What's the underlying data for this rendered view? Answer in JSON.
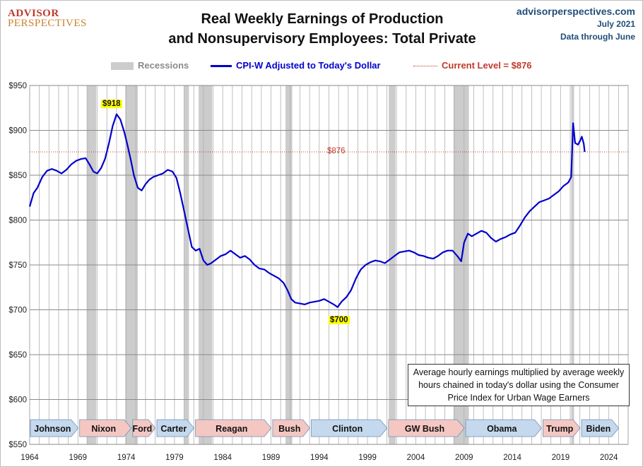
{
  "header": {
    "logo_line1": "ADVISOR",
    "logo_line2": "PERSPECTIVES",
    "title_line1": "Real Weekly Earnings of Production",
    "title_line2": "and Nonsupervisory Employees: Total Private",
    "source_site": "advisorperspectives.com",
    "source_date": "July 2021",
    "source_note": "Data through June"
  },
  "legend": {
    "recessions": "Recessions",
    "series": "CPI-W Adjusted to Today's Dollar",
    "current": "Current Level = $876"
  },
  "note": "Average hourly earnings multiplied by average weekly hours chained in today's dollar using the Consumer Price Index for Urban Wage Earners",
  "callouts": {
    "max": "$918",
    "min": "$700",
    "current": "$876"
  },
  "colors": {
    "line": "#0000cc",
    "recession": "#cccccc",
    "current": "#c0392b",
    "gop": "#f4c7c3",
    "dem": "#c5d9ee"
  },
  "chart_data": {
    "type": "line",
    "title": "Real Weekly Earnings of Production and Nonsupervisory Employees: Total Private",
    "ylim": [
      550,
      950
    ],
    "xlim": [
      1964,
      2026
    ],
    "y_ticks": [
      550,
      600,
      650,
      700,
      750,
      800,
      850,
      900,
      950
    ],
    "y_tick_labels": [
      "$550",
      "$600",
      "$650",
      "$700",
      "$750",
      "$800",
      "$850",
      "$900",
      "$950"
    ],
    "x_ticks": [
      1964,
      1969,
      1974,
      1979,
      1984,
      1989,
      1994,
      1999,
      2004,
      2009,
      2014,
      2019,
      2024
    ],
    "grid": true,
    "current_level": 876,
    "recessions": [
      [
        1969.9,
        1970.9
      ],
      [
        1973.9,
        1975.2
      ],
      [
        1980.0,
        1980.5
      ],
      [
        1981.5,
        1982.9
      ],
      [
        1990.5,
        1991.2
      ],
      [
        2001.2,
        2001.9
      ],
      [
        2007.9,
        2009.5
      ],
      [
        2020.1,
        2020.4
      ]
    ],
    "presidents": [
      {
        "name": "Johnson",
        "start": 1964.0,
        "end": 1969.1,
        "party": "D"
      },
      {
        "name": "Nixon",
        "start": 1969.1,
        "end": 1974.6,
        "party": "R"
      },
      {
        "name": "Ford",
        "start": 1974.6,
        "end": 1977.1,
        "party": "R"
      },
      {
        "name": "Carter",
        "start": 1977.1,
        "end": 1981.1,
        "party": "D"
      },
      {
        "name": "Reagan",
        "start": 1981.1,
        "end": 1989.1,
        "party": "R"
      },
      {
        "name": "Bush",
        "start": 1989.1,
        "end": 1993.1,
        "party": "R"
      },
      {
        "name": "Clinton",
        "start": 1993.1,
        "end": 2001.1,
        "party": "D"
      },
      {
        "name": "GW Bush",
        "start": 2001.1,
        "end": 2009.1,
        "party": "R"
      },
      {
        "name": "Obama",
        "start": 2009.1,
        "end": 2017.1,
        "party": "D"
      },
      {
        "name": "Trump",
        "start": 2017.1,
        "end": 2021.1,
        "party": "R"
      },
      {
        "name": "Biden",
        "start": 2021.1,
        "end": 2025.1,
        "party": "D"
      }
    ],
    "series": [
      {
        "name": "CPI-W Adjusted to Today's Dollar",
        "points": [
          [
            1964.0,
            815
          ],
          [
            1964.4,
            830
          ],
          [
            1964.8,
            836
          ],
          [
            1965.3,
            848
          ],
          [
            1965.8,
            855
          ],
          [
            1966.3,
            857
          ],
          [
            1966.8,
            855
          ],
          [
            1967.3,
            852
          ],
          [
            1967.8,
            856
          ],
          [
            1968.3,
            862
          ],
          [
            1968.8,
            866
          ],
          [
            1969.3,
            868
          ],
          [
            1969.8,
            869
          ],
          [
            1970.2,
            862
          ],
          [
            1970.6,
            854
          ],
          [
            1971.0,
            852
          ],
          [
            1971.4,
            858
          ],
          [
            1971.8,
            868
          ],
          [
            1972.2,
            885
          ],
          [
            1972.6,
            905
          ],
          [
            1973.0,
            918
          ],
          [
            1973.4,
            912
          ],
          [
            1973.8,
            898
          ],
          [
            1974.1,
            885
          ],
          [
            1974.5,
            866
          ],
          [
            1974.8,
            850
          ],
          [
            1975.2,
            836
          ],
          [
            1975.6,
            833
          ],
          [
            1976.0,
            840
          ],
          [
            1976.4,
            845
          ],
          [
            1976.8,
            848
          ],
          [
            1977.3,
            850
          ],
          [
            1977.8,
            852
          ],
          [
            1978.3,
            856
          ],
          [
            1978.8,
            854
          ],
          [
            1979.2,
            847
          ],
          [
            1979.6,
            830
          ],
          [
            1980.0,
            810
          ],
          [
            1980.4,
            790
          ],
          [
            1980.8,
            770
          ],
          [
            1981.2,
            766
          ],
          [
            1981.6,
            768
          ],
          [
            1982.0,
            755
          ],
          [
            1982.4,
            750
          ],
          [
            1982.8,
            752
          ],
          [
            1983.3,
            756
          ],
          [
            1983.8,
            760
          ],
          [
            1984.3,
            762
          ],
          [
            1984.8,
            766
          ],
          [
            1985.3,
            762
          ],
          [
            1985.8,
            758
          ],
          [
            1986.3,
            760
          ],
          [
            1986.8,
            756
          ],
          [
            1987.3,
            750
          ],
          [
            1987.8,
            746
          ],
          [
            1988.3,
            745
          ],
          [
            1988.8,
            741
          ],
          [
            1989.3,
            738
          ],
          [
            1989.8,
            735
          ],
          [
            1990.3,
            730
          ],
          [
            1990.7,
            722
          ],
          [
            1991.1,
            712
          ],
          [
            1991.5,
            708
          ],
          [
            1992.0,
            707
          ],
          [
            1992.5,
            706
          ],
          [
            1993.0,
            708
          ],
          [
            1993.5,
            709
          ],
          [
            1994.0,
            710
          ],
          [
            1994.5,
            712
          ],
          [
            1995.0,
            709
          ],
          [
            1995.5,
            706
          ],
          [
            1995.9,
            703
          ],
          [
            1996.3,
            709
          ],
          [
            1996.8,
            714
          ],
          [
            1997.3,
            722
          ],
          [
            1997.8,
            735
          ],
          [
            1998.3,
            745
          ],
          [
            1998.8,
            750
          ],
          [
            1999.3,
            753
          ],
          [
            1999.8,
            755
          ],
          [
            2000.3,
            754
          ],
          [
            2000.8,
            752
          ],
          [
            2001.3,
            756
          ],
          [
            2001.8,
            760
          ],
          [
            2002.3,
            764
          ],
          [
            2002.8,
            765
          ],
          [
            2003.3,
            766
          ],
          [
            2003.8,
            764
          ],
          [
            2004.3,
            761
          ],
          [
            2004.8,
            760
          ],
          [
            2005.3,
            758
          ],
          [
            2005.8,
            757
          ],
          [
            2006.3,
            760
          ],
          [
            2006.8,
            764
          ],
          [
            2007.3,
            766
          ],
          [
            2007.8,
            766
          ],
          [
            2008.3,
            760
          ],
          [
            2008.7,
            754
          ],
          [
            2009.0,
            775
          ],
          [
            2009.4,
            785
          ],
          [
            2009.8,
            782
          ],
          [
            2010.3,
            785
          ],
          [
            2010.8,
            788
          ],
          [
            2011.3,
            786
          ],
          [
            2011.8,
            780
          ],
          [
            2012.3,
            776
          ],
          [
            2012.8,
            779
          ],
          [
            2013.3,
            781
          ],
          [
            2013.8,
            784
          ],
          [
            2014.3,
            786
          ],
          [
            2014.8,
            794
          ],
          [
            2015.3,
            803
          ],
          [
            2015.8,
            810
          ],
          [
            2016.3,
            815
          ],
          [
            2016.8,
            820
          ],
          [
            2017.3,
            822
          ],
          [
            2017.8,
            824
          ],
          [
            2018.3,
            828
          ],
          [
            2018.8,
            832
          ],
          [
            2019.3,
            838
          ],
          [
            2019.8,
            842
          ],
          [
            2020.1,
            848
          ],
          [
            2020.3,
            908
          ],
          [
            2020.5,
            886
          ],
          [
            2020.8,
            884
          ],
          [
            2021.0,
            888
          ],
          [
            2021.2,
            893
          ],
          [
            2021.4,
            885
          ],
          [
            2021.5,
            876
          ]
        ]
      }
    ]
  }
}
